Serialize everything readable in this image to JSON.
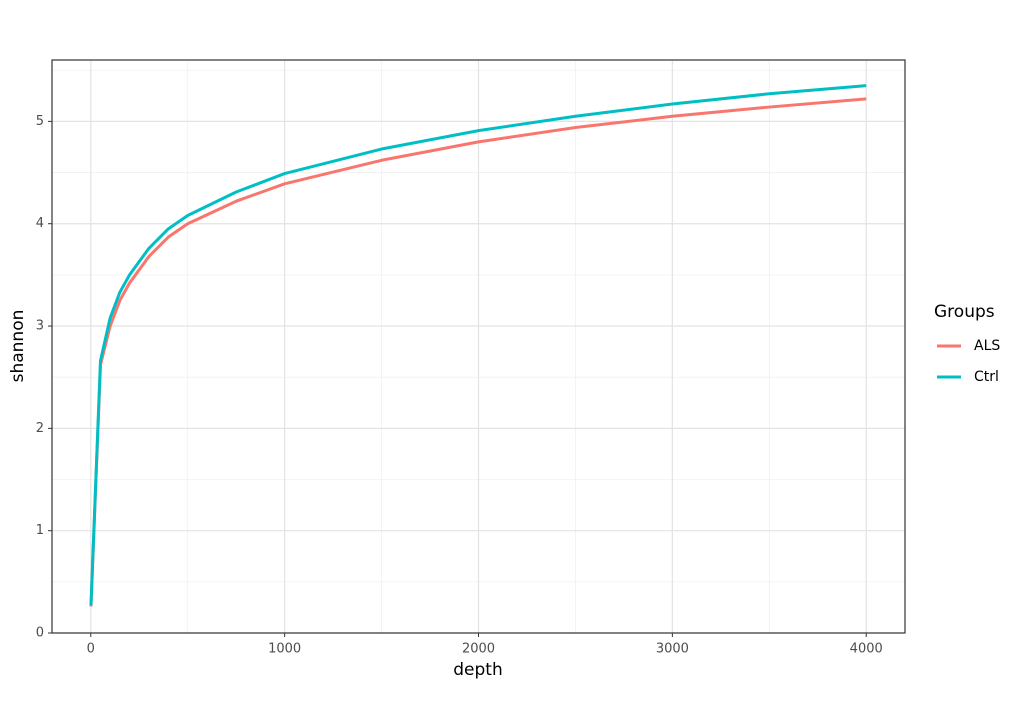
{
  "chart_data": {
    "type": "line",
    "x_label": "depth",
    "y_label": "shannon",
    "x": [
      1,
      50,
      100,
      150,
      200,
      300,
      400,
      500,
      750,
      1000,
      1500,
      2000,
      2500,
      3000,
      3500,
      4000
    ],
    "series": [
      {
        "name": "ALS",
        "color": "#f8766d",
        "values": [
          0.26,
          2.62,
          3.0,
          3.25,
          3.42,
          3.68,
          3.87,
          4.0,
          4.22,
          4.39,
          4.62,
          4.8,
          4.94,
          5.05,
          5.14,
          5.22
        ]
      },
      {
        "name": "Ctrl",
        "color": "#00bfc4",
        "values": [
          0.27,
          2.66,
          3.08,
          3.33,
          3.5,
          3.76,
          3.95,
          4.08,
          4.31,
          4.49,
          4.73,
          4.91,
          5.05,
          5.17,
          5.27,
          5.35
        ]
      }
    ],
    "legend_title": "Groups",
    "legend_position": "right",
    "xlim": [
      -200,
      4200
    ],
    "xticks": [
      0,
      1000,
      2000,
      3000,
      4000
    ],
    "xminorticks": [
      500,
      1500,
      2500,
      3500
    ],
    "ylim": [
      0,
      5.6
    ],
    "yticks": [
      0,
      1,
      2,
      3,
      4,
      5
    ],
    "yminorticks": [
      0.5,
      1.5,
      2.5,
      3.5,
      4.5,
      5.5
    ],
    "grid": true
  }
}
